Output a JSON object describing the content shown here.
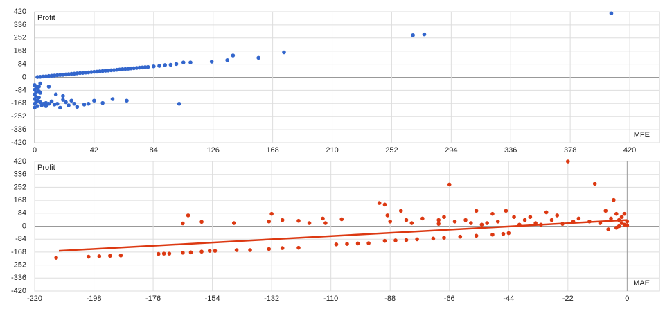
{
  "chart_data": [
    {
      "type": "scatter",
      "x_label": "MFE",
      "y_label": "Profit",
      "color": "#3366cc",
      "grid": true,
      "xlim": [
        0,
        441
      ],
      "xticks": [
        0,
        42,
        84,
        126,
        168,
        210,
        252,
        294,
        336,
        378,
        420
      ],
      "ylim": [
        -420,
        420
      ],
      "yticks": [
        420,
        336,
        252,
        168,
        84,
        0,
        -84,
        -168,
        -252,
        -336,
        -420
      ],
      "x": [
        2,
        4,
        6,
        8,
        10,
        12,
        14,
        16,
        18,
        20,
        22,
        24,
        26,
        28,
        30,
        32,
        34,
        36,
        38,
        40,
        42,
        44,
        46,
        48,
        50,
        52,
        54,
        56,
        58,
        60,
        62,
        64,
        66,
        68,
        70,
        72,
        74,
        76,
        78,
        80,
        84,
        88,
        92,
        96,
        100,
        105,
        110,
        125,
        136,
        140,
        158,
        176,
        267,
        275,
        407,
        0,
        0,
        0,
        0,
        0,
        0,
        1,
        1,
        1,
        1,
        2,
        2,
        2,
        3,
        3,
        3,
        4,
        4,
        5,
        6,
        8,
        10,
        12,
        14,
        16,
        18,
        20,
        22,
        24,
        26,
        28,
        30,
        35,
        38,
        42,
        48,
        55,
        65,
        102,
        8,
        15,
        20,
        10,
        4
      ],
      "y": [
        2,
        3,
        5,
        6,
        8,
        10,
        11,
        13,
        15,
        16,
        18,
        20,
        22,
        23,
        25,
        27,
        28,
        30,
        31,
        33,
        35,
        36,
        38,
        40,
        42,
        43,
        45,
        46,
        48,
        50,
        52,
        53,
        55,
        57,
        58,
        60,
        62,
        63,
        65,
        66,
        70,
        73,
        78,
        80,
        85,
        95,
        95,
        100,
        110,
        140,
        125,
        160,
        270,
        275,
        410,
        -50,
        -80,
        -110,
        -140,
        -170,
        -195,
        -60,
        -95,
        -125,
        -160,
        -70,
        -150,
        -185,
        -90,
        -130,
        -60,
        -100,
        -160,
        -180,
        -170,
        -185,
        -170,
        -155,
        -175,
        -170,
        -195,
        -145,
        -160,
        -180,
        -150,
        -170,
        -190,
        -175,
        -170,
        -150,
        -165,
        -140,
        -150,
        -170,
        -165,
        -110,
        -120,
        -60,
        -40
      ]
    },
    {
      "type": "scatter",
      "x_label": "MAE",
      "y_label": "Profit",
      "color": "#dc3912",
      "grid": true,
      "xlim": [
        -220,
        12
      ],
      "xticks": [
        -220,
        -198,
        -176,
        -154,
        -132,
        -110,
        -88,
        -66,
        -44,
        -22,
        0
      ],
      "ylim": [
        -420,
        420
      ],
      "yticks": [
        420,
        336,
        252,
        168,
        84,
        0,
        -84,
        -168,
        -252,
        -336,
        -420
      ],
      "x": [
        -212,
        -200,
        -196,
        -192,
        -188,
        -174,
        -172,
        -170,
        -165,
        -162,
        -158,
        -155,
        -153,
        -145,
        -140,
        -133,
        -128,
        -122,
        -108,
        -104,
        -100,
        -96,
        -90,
        -86,
        -82,
        -78,
        -72,
        -68,
        -62,
        -56,
        -50,
        -46,
        -44,
        -165,
        -163,
        -158,
        -146,
        -133,
        -132,
        -128,
        -122,
        -118,
        -113,
        -112,
        -106,
        -92,
        -90,
        -89,
        -88,
        -84,
        -82,
        -80,
        -76,
        -70,
        -68,
        -66,
        -60,
        -56,
        -52,
        -50,
        -45,
        -42,
        -38,
        -34,
        -30,
        -26,
        -22,
        -20,
        -18,
        -12,
        -10,
        -8,
        -5,
        -4,
        -3,
        -2,
        -1,
        0,
        -6,
        -14,
        -24,
        -28,
        -32,
        -36,
        -40,
        -48,
        -54,
        -58,
        -64,
        -70,
        -2,
        -1,
        0,
        -4,
        -3,
        -7
      ],
      "y": [
        -205,
        -198,
        -195,
        -192,
        -190,
        -180,
        -178,
        -178,
        -172,
        -170,
        -165,
        -160,
        -160,
        -155,
        -155,
        -148,
        -142,
        -140,
        -118,
        -115,
        -112,
        -110,
        -95,
        -92,
        -90,
        -85,
        -80,
        -75,
        -68,
        -62,
        -55,
        -50,
        -45,
        18,
        70,
        28,
        20,
        30,
        80,
        40,
        35,
        20,
        50,
        20,
        45,
        150,
        140,
        70,
        30,
        100,
        40,
        20,
        50,
        15,
        60,
        270,
        40,
        100,
        20,
        80,
        100,
        60,
        40,
        20,
        90,
        70,
        420,
        30,
        50,
        275,
        20,
        100,
        170,
        80,
        40,
        20,
        10,
        5,
        50,
        30,
        15,
        40,
        10,
        60,
        10,
        30,
        10,
        20,
        30,
        40,
        60,
        80,
        30,
        -10,
        0,
        -20
      ],
      "trendline": {
        "color": "#dc3912",
        "x": [
          -211,
          0
        ],
        "y": [
          -160,
          40
        ]
      }
    }
  ]
}
